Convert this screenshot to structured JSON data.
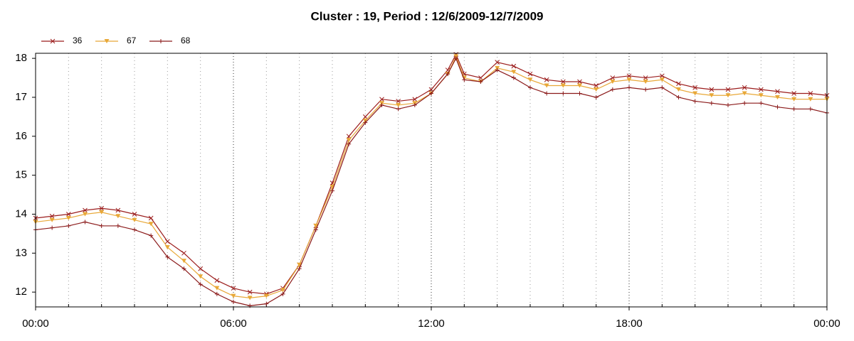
{
  "chart_data": {
    "type": "line",
    "title": "Cluster : 19, Period : 12/6/2009-12/7/2009",
    "x": [
      0,
      0.5,
      1,
      1.5,
      2,
      2.5,
      3,
      3.5,
      4,
      4.5,
      5,
      5.5,
      6,
      6.5,
      7,
      7.5,
      8,
      8.5,
      9,
      9.5,
      10,
      10.5,
      11,
      11.5,
      12,
      12.5,
      12.75,
      13,
      13.5,
      14,
      14.5,
      15,
      15.5,
      16,
      16.5,
      17,
      17.5,
      18,
      18.5,
      19,
      19.5,
      20,
      20.5,
      21,
      21.5,
      22,
      22.5,
      23,
      23.5,
      24
    ],
    "series": [
      {
        "name": "36",
        "color": "#9b1c1c",
        "marker": "x",
        "values": [
          13.9,
          13.95,
          14.0,
          14.1,
          14.15,
          14.1,
          14.0,
          13.9,
          13.3,
          13.0,
          12.6,
          12.3,
          12.1,
          12.0,
          11.95,
          12.1,
          12.7,
          13.7,
          14.8,
          16.0,
          16.5,
          16.95,
          16.9,
          16.95,
          17.2,
          17.7,
          18.1,
          17.6,
          17.5,
          17.9,
          17.8,
          17.6,
          17.45,
          17.4,
          17.4,
          17.3,
          17.5,
          17.55,
          17.5,
          17.55,
          17.35,
          17.25,
          17.2,
          17.2,
          17.25,
          17.2,
          17.15,
          17.1,
          17.1,
          17.05
        ]
      },
      {
        "name": "67",
        "color": "#e8a838",
        "marker": "triangle-down",
        "values": [
          13.8,
          13.85,
          13.9,
          14.0,
          14.05,
          13.95,
          13.85,
          13.75,
          13.15,
          12.8,
          12.4,
          12.1,
          11.9,
          11.85,
          11.9,
          12.05,
          12.7,
          13.7,
          14.7,
          15.9,
          16.4,
          16.85,
          16.8,
          16.85,
          17.1,
          17.6,
          18.05,
          17.5,
          17.4,
          17.75,
          17.65,
          17.45,
          17.3,
          17.3,
          17.3,
          17.2,
          17.4,
          17.45,
          17.4,
          17.45,
          17.2,
          17.1,
          17.05,
          17.05,
          17.1,
          17.05,
          17.0,
          16.95,
          16.95,
          16.95
        ]
      },
      {
        "name": "68",
        "color": "#8b1a1a",
        "marker": "plus",
        "values": [
          13.6,
          13.65,
          13.7,
          13.8,
          13.7,
          13.7,
          13.6,
          13.45,
          12.9,
          12.6,
          12.2,
          11.95,
          11.75,
          11.65,
          11.7,
          11.95,
          12.6,
          13.6,
          14.6,
          15.8,
          16.35,
          16.8,
          16.7,
          16.8,
          17.1,
          17.6,
          18.0,
          17.45,
          17.4,
          17.7,
          17.5,
          17.25,
          17.1,
          17.1,
          17.1,
          17.0,
          17.2,
          17.25,
          17.2,
          17.25,
          17.0,
          16.9,
          16.85,
          16.8,
          16.85,
          16.85,
          16.75,
          16.7,
          16.7,
          16.6
        ]
      }
    ],
    "xlim": [
      0,
      24
    ],
    "xticks": [
      {
        "value": 0,
        "label": "00:00"
      },
      {
        "value": 6,
        "label": "06:00"
      },
      {
        "value": 12,
        "label": "12:00"
      },
      {
        "value": 18,
        "label": "18:00"
      },
      {
        "value": 24,
        "label": "00:00"
      }
    ],
    "xminorticks": [
      1,
      2,
      3,
      4,
      5,
      7,
      8,
      9,
      10,
      11,
      13,
      14,
      15,
      16,
      17,
      19,
      20,
      21,
      22,
      23
    ],
    "ylim": [
      11.62,
      18.13
    ],
    "yticks": [
      12,
      13,
      14,
      15,
      16,
      17,
      18
    ],
    "grid": true,
    "legend": "top-left"
  }
}
